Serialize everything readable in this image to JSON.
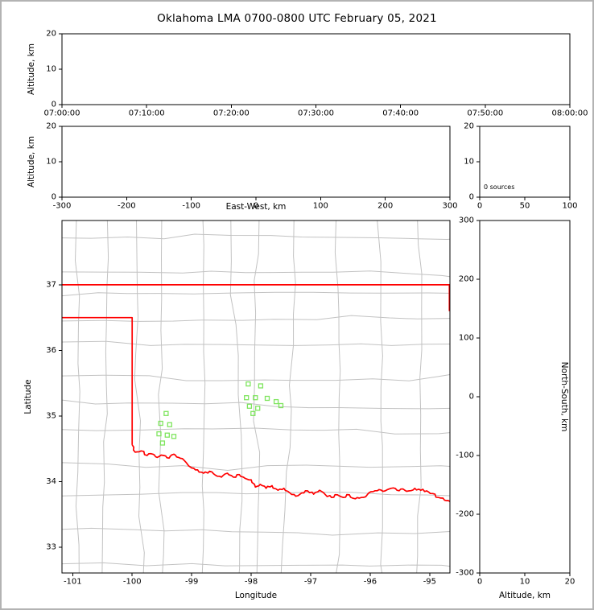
{
  "title": "Oklahoma LMA 0700-0800 UTC February 05, 2021",
  "colors": {
    "state_border": "#ff0000",
    "county": "#c2c2c2",
    "station": "#7fe55f",
    "frame": "#000000",
    "background": "#ffffff"
  },
  "panels": {
    "time_height": {
      "ylabel": "Altitude, km",
      "xlim": [
        0,
        6
      ],
      "ylim": [
        0,
        20
      ],
      "xticks": [
        0,
        1,
        2,
        3,
        4,
        5,
        6
      ],
      "xtick_labels": [
        "07:00:00",
        "07:10:00",
        "07:20:00",
        "07:30:00",
        "07:40:00",
        "07:50:00",
        "08:00:00"
      ],
      "yticks": [
        0,
        10,
        20
      ],
      "ytick_labels": [
        "0",
        "10",
        "20"
      ]
    },
    "ew_height": {
      "xlabel": "East-West, km",
      "ylabel": "Altitude, km",
      "xlim": [
        -300,
        300
      ],
      "ylim": [
        0,
        20
      ],
      "xticks": [
        -300,
        -200,
        -100,
        0,
        100,
        200,
        300
      ],
      "xtick_labels": [
        "-300",
        "-200",
        "-100",
        "0",
        "100",
        "200",
        "300"
      ],
      "yticks": [
        0,
        10,
        20
      ],
      "ytick_labels": [
        "0",
        "10",
        "20"
      ]
    },
    "alt_histogram": {
      "annotation": "0 sources",
      "xlim": [
        0,
        100
      ],
      "ylim": [
        0,
        20
      ],
      "xticks": [
        0,
        50,
        100
      ],
      "xtick_labels": [
        "0",
        "50",
        "100"
      ],
      "yticks": [
        0,
        10,
        20
      ],
      "ytick_labels": [
        "0",
        "10",
        "20"
      ]
    },
    "map": {
      "xlabel": "Longitude",
      "ylabel": "Latitude",
      "xlim": [
        -101.18,
        -94.66
      ],
      "ylim": [
        32.61,
        37.98
      ],
      "xticks": [
        -101,
        -100,
        -99,
        -98,
        -97,
        -96,
        -95
      ],
      "xtick_labels": [
        "-101",
        "-100",
        "-99",
        "-98",
        "-97",
        "-96",
        "-95"
      ],
      "yticks": [
        33,
        34,
        35,
        36,
        37
      ],
      "ytick_labels": [
        "33",
        "34",
        "35",
        "36",
        "37"
      ]
    },
    "ns_height": {
      "xlabel": "Altitude, km",
      "ylabel": "North-South, km",
      "xlim": [
        0,
        20
      ],
      "ylim": [
        -300,
        300
      ],
      "xticks": [
        0,
        10,
        20
      ],
      "xtick_labels": [
        "0",
        "10",
        "20"
      ],
      "yticks": [
        -300,
        -200,
        -100,
        0,
        100,
        200,
        300
      ],
      "ytick_labels": [
        "-300",
        "-200",
        "-100",
        "0",
        "100",
        "200",
        "300"
      ]
    }
  },
  "chart_data": {
    "type": "scatter",
    "figure": "LMA lightning display: time-height, east-west height, altitude histogram, plan-view map, north-south height panels",
    "source_count": 0,
    "sources": [],
    "stations_lonlat": [
      [
        -98.05,
        35.49
      ],
      [
        -97.84,
        35.46
      ],
      [
        -98.08,
        35.28
      ],
      [
        -97.93,
        35.28
      ],
      [
        -97.73,
        35.27
      ],
      [
        -98.03,
        35.15
      ],
      [
        -97.89,
        35.12
      ],
      [
        -97.58,
        35.22
      ],
      [
        -97.5,
        35.16
      ],
      [
        -97.97,
        35.04
      ],
      [
        -99.43,
        35.04
      ],
      [
        -99.52,
        34.89
      ],
      [
        -99.37,
        34.87
      ],
      [
        -99.55,
        34.73
      ],
      [
        -99.41,
        34.71
      ],
      [
        -99.3,
        34.69
      ],
      [
        -99.49,
        34.59
      ]
    ],
    "state_border_segments": [
      {
        "name": "kansas-border-37N",
        "points": [
          [
            -101.18,
            37.0
          ],
          [
            -94.66,
            37.0
          ]
        ]
      },
      {
        "name": "missouri-border-east-edge",
        "points": [
          [
            -94.67,
            37.0
          ],
          [
            -94.67,
            36.6
          ]
        ]
      },
      {
        "name": "panhandle-and-100W-texas-border",
        "points": [
          [
            -101.18,
            36.5
          ],
          [
            -100.0,
            36.5
          ],
          [
            -100.0,
            34.56
          ]
        ]
      },
      {
        "name": "red-river-texas-border",
        "wiggle": true,
        "points": [
          [
            -100.0,
            34.56
          ],
          [
            -99.95,
            34.45
          ],
          [
            -99.85,
            34.47
          ],
          [
            -99.75,
            34.4
          ],
          [
            -99.65,
            34.42
          ],
          [
            -99.58,
            34.37
          ],
          [
            -99.47,
            34.4
          ],
          [
            -99.38,
            34.36
          ],
          [
            -99.3,
            34.42
          ],
          [
            -99.22,
            34.37
          ],
          [
            -99.13,
            34.33
          ],
          [
            -99.0,
            34.21
          ],
          [
            -98.9,
            34.18
          ],
          [
            -98.8,
            34.13
          ],
          [
            -98.7,
            34.16
          ],
          [
            -98.6,
            34.1
          ],
          [
            -98.5,
            34.07
          ],
          [
            -98.4,
            34.13
          ],
          [
            -98.3,
            34.07
          ],
          [
            -98.2,
            34.11
          ],
          [
            -98.1,
            34.05
          ],
          [
            -98.0,
            34.03
          ],
          [
            -97.93,
            33.92
          ],
          [
            -97.85,
            33.96
          ],
          [
            -97.75,
            33.9
          ],
          [
            -97.65,
            33.94
          ],
          [
            -97.55,
            33.87
          ],
          [
            -97.45,
            33.9
          ],
          [
            -97.35,
            33.83
          ],
          [
            -97.25,
            33.78
          ],
          [
            -97.15,
            33.83
          ],
          [
            -97.05,
            33.86
          ],
          [
            -96.95,
            33.81
          ],
          [
            -96.85,
            33.87
          ],
          [
            -96.75,
            33.8
          ],
          [
            -96.65,
            33.76
          ],
          [
            -96.55,
            33.8
          ],
          [
            -96.45,
            33.76
          ],
          [
            -96.35,
            33.8
          ],
          [
            -96.25,
            33.74
          ],
          [
            -96.15,
            33.76
          ],
          [
            -96.05,
            33.8
          ],
          [
            -95.95,
            33.85
          ],
          [
            -95.85,
            33.88
          ],
          [
            -95.75,
            33.86
          ],
          [
            -95.65,
            33.9
          ],
          [
            -95.55,
            33.87
          ],
          [
            -95.45,
            33.89
          ],
          [
            -95.35,
            33.86
          ],
          [
            -95.25,
            33.9
          ],
          [
            -95.15,
            33.87
          ],
          [
            -95.05,
            33.86
          ],
          [
            -94.95,
            33.82
          ],
          [
            -94.85,
            33.76
          ],
          [
            -94.75,
            33.72
          ],
          [
            -94.66,
            33.7
          ]
        ]
      }
    ]
  }
}
